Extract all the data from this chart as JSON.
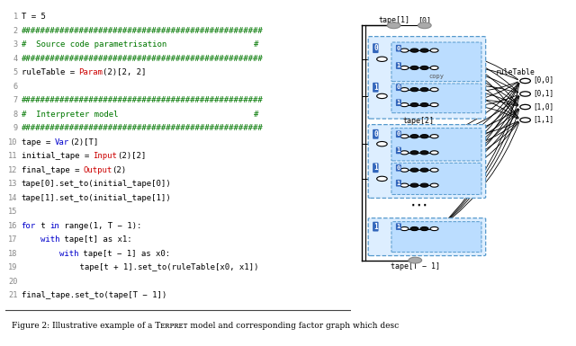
{
  "code_lines": [
    {
      "num": "1",
      "parts": [
        {
          "txt": "T = 5",
          "color": "#000000"
        }
      ]
    },
    {
      "num": "2",
      "parts": [
        {
          "txt": "##################################################",
          "color": "#007700"
        }
      ]
    },
    {
      "num": "3",
      "parts": [
        {
          "txt": "#  Source code parametrisation                  #",
          "color": "#007700"
        }
      ]
    },
    {
      "num": "4",
      "parts": [
        {
          "txt": "##################################################",
          "color": "#007700"
        }
      ]
    },
    {
      "num": "5",
      "parts": [
        {
          "txt": "ruleTable = ",
          "color": "#000000"
        },
        {
          "txt": "Param",
          "color": "#cc0000"
        },
        {
          "txt": "(2)[2, 2]",
          "color": "#000000"
        }
      ]
    },
    {
      "num": "6",
      "parts": []
    },
    {
      "num": "7",
      "parts": [
        {
          "txt": "##################################################",
          "color": "#007700"
        }
      ]
    },
    {
      "num": "8",
      "parts": [
        {
          "txt": "#  Interpreter model                            #",
          "color": "#007700"
        }
      ]
    },
    {
      "num": "9",
      "parts": [
        {
          "txt": "##################################################",
          "color": "#007700"
        }
      ]
    },
    {
      "num": "10",
      "parts": [
        {
          "txt": "tape = ",
          "color": "#000000"
        },
        {
          "txt": "Var",
          "color": "#0000cc"
        },
        {
          "txt": "(2)[T]",
          "color": "#000000"
        }
      ]
    },
    {
      "num": "11",
      "parts": [
        {
          "txt": "initial_tape = ",
          "color": "#000000"
        },
        {
          "txt": "Input",
          "color": "#cc0000"
        },
        {
          "txt": "(2)[2]",
          "color": "#000000"
        }
      ]
    },
    {
      "num": "12",
      "parts": [
        {
          "txt": "final_tape = ",
          "color": "#000000"
        },
        {
          "txt": "Output",
          "color": "#cc0000"
        },
        {
          "txt": "(2)",
          "color": "#000000"
        }
      ]
    },
    {
      "num": "13",
      "parts": [
        {
          "txt": "tape[0].set_to(initial_tape[0])",
          "color": "#000000"
        }
      ]
    },
    {
      "num": "14",
      "parts": [
        {
          "txt": "tape[1].set_to(initial_tape[1])",
          "color": "#000000"
        }
      ]
    },
    {
      "num": "15",
      "parts": []
    },
    {
      "num": "16",
      "parts": [
        {
          "txt": "for",
          "color": "#0000cc"
        },
        {
          "txt": " t ",
          "color": "#000000"
        },
        {
          "txt": "in",
          "color": "#0000cc"
        },
        {
          "txt": " range(1, T − 1):",
          "color": "#000000"
        }
      ]
    },
    {
      "num": "17",
      "parts": [
        {
          "txt": "    ",
          "color": "#000000"
        },
        {
          "txt": "with",
          "color": "#0000cc"
        },
        {
          "txt": " tape[t] as x1:",
          "color": "#000000"
        }
      ]
    },
    {
      "num": "18",
      "parts": [
        {
          "txt": "        ",
          "color": "#000000"
        },
        {
          "txt": "with",
          "color": "#0000cc"
        },
        {
          "txt": " tape[t − 1] as x0:",
          "color": "#000000"
        }
      ]
    },
    {
      "num": "19",
      "parts": [
        {
          "txt": "            tape[t + 1].set_to(ruleTable[x0, x1])",
          "color": "#000000"
        }
      ]
    },
    {
      "num": "20",
      "parts": []
    },
    {
      "num": "21",
      "parts": [
        {
          "txt": "final_tape.set_to(tape[T − 1])",
          "color": "#000000"
        }
      ]
    }
  ],
  "caption": "Figure 2: Illustrative example of a Tᴇʀᴘʀᴇᴛ model and corresponding factor graph which desc",
  "bg_color": "#ffffff"
}
